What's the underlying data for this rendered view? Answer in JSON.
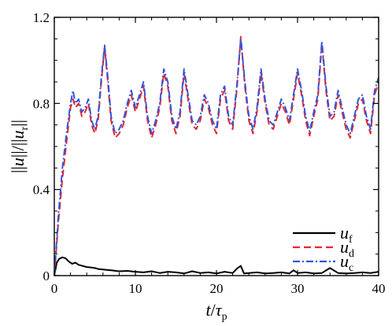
{
  "chart_data": {
    "type": "line",
    "xlabel": "t/τ_p",
    "ylabel": "||u||/||u_r||",
    "xlim": [
      0,
      40
    ],
    "ylim": [
      0,
      1.2
    ],
    "xticks": [
      0,
      10,
      20,
      30,
      40
    ],
    "yticks": [
      0,
      0.4,
      0.8,
      1.2
    ],
    "xtick_labels": [
      "0",
      "10",
      "20",
      "30",
      "40"
    ],
    "ytick_labels": [
      "0",
      "0.4",
      "0.8",
      "1.2"
    ],
    "grid": false,
    "legend_position": "bottom-right",
    "series": [
      {
        "name": "u_f",
        "color": "#000000",
        "style": "solid",
        "x": [
          0,
          0.3,
          0.6,
          1.0,
          1.4,
          1.8,
          2.2,
          2.6,
          3.0,
          3.5,
          4.0,
          4.5,
          5.0,
          5.5,
          6.0,
          7.0,
          8.0,
          9.0,
          10.0,
          11.0,
          12.0,
          13.0,
          14.0,
          15.0,
          16.0,
          17.0,
          18.0,
          19.0,
          20.0,
          21.0,
          22.0,
          22.6,
          23.0,
          23.4,
          24.0,
          25.0,
          26.0,
          27.0,
          28.0,
          29.0,
          29.5,
          30.0,
          31.0,
          32.0,
          33.0,
          34.0,
          35.0,
          36.0,
          37.0,
          38.0,
          39.0,
          40.0
        ],
        "values": [
          0.0,
          0.06,
          0.078,
          0.085,
          0.08,
          0.065,
          0.055,
          0.06,
          0.05,
          0.045,
          0.04,
          0.038,
          0.035,
          0.03,
          0.028,
          0.025,
          0.02,
          0.022,
          0.018,
          0.015,
          0.02,
          0.012,
          0.018,
          0.015,
          0.01,
          0.02,
          0.012,
          0.015,
          0.01,
          0.018,
          0.012,
          0.035,
          0.045,
          0.01,
          0.012,
          0.015,
          0.01,
          0.012,
          0.015,
          0.01,
          0.025,
          0.012,
          0.015,
          0.01,
          0.012,
          0.035,
          0.012,
          0.01,
          0.012,
          0.015,
          0.012,
          0.018
        ]
      },
      {
        "name": "u_d",
        "color": "#e8262b",
        "style": "dashed",
        "x": [
          0,
          0.5,
          1.0,
          1.5,
          2.0,
          2.3,
          2.6,
          3.0,
          3.4,
          3.8,
          4.2,
          4.6,
          5.0,
          5.4,
          5.8,
          6.2,
          6.6,
          7.0,
          7.5,
          8.0,
          8.5,
          9.0,
          9.5,
          10.0,
          10.5,
          11.0,
          11.5,
          12.0,
          12.5,
          13.0,
          13.5,
          14.0,
          14.5,
          15.0,
          15.5,
          16.0,
          16.5,
          17.0,
          17.5,
          18.0,
          18.5,
          19.0,
          19.5,
          20.0,
          20.5,
          21.0,
          21.5,
          22.0,
          22.5,
          23.0,
          23.5,
          24.0,
          24.5,
          25.0,
          25.5,
          26.0,
          26.5,
          27.0,
          27.5,
          28.0,
          28.5,
          29.0,
          29.5,
          30.0,
          30.5,
          31.0,
          31.5,
          32.0,
          32.5,
          33.0,
          33.5,
          34.0,
          34.5,
          35.0,
          35.5,
          36.0,
          36.5,
          37.0,
          37.5,
          38.0,
          38.5,
          39.0,
          39.5,
          40.0
        ],
        "values": [
          0.0,
          0.25,
          0.45,
          0.62,
          0.78,
          0.82,
          0.78,
          0.8,
          0.74,
          0.76,
          0.8,
          0.7,
          0.66,
          0.72,
          0.9,
          1.06,
          0.9,
          0.72,
          0.64,
          0.66,
          0.7,
          0.78,
          0.84,
          0.76,
          0.82,
          0.88,
          0.72,
          0.64,
          0.7,
          0.78,
          0.94,
          0.88,
          0.72,
          0.66,
          0.74,
          0.94,
          0.82,
          0.7,
          0.68,
          0.72,
          0.82,
          0.78,
          0.7,
          0.66,
          0.82,
          0.86,
          0.72,
          0.68,
          0.86,
          1.11,
          0.88,
          0.72,
          0.66,
          0.76,
          0.94,
          0.8,
          0.7,
          0.68,
          0.74,
          0.8,
          0.76,
          0.7,
          0.82,
          0.94,
          0.84,
          0.72,
          0.65,
          0.74,
          0.82,
          1.08,
          0.86,
          0.72,
          0.74,
          0.84,
          0.76,
          0.68,
          0.64,
          0.72,
          0.8,
          0.82,
          0.72,
          0.66,
          0.84,
          0.9
        ]
      },
      {
        "name": "u_c",
        "color": "#3355dd",
        "style": "dashdot",
        "x": [
          0,
          0.5,
          1.0,
          1.5,
          2.0,
          2.3,
          2.6,
          3.0,
          3.4,
          3.8,
          4.2,
          4.6,
          5.0,
          5.4,
          5.8,
          6.2,
          6.6,
          7.0,
          7.5,
          8.0,
          8.5,
          9.0,
          9.5,
          10.0,
          10.5,
          11.0,
          11.5,
          12.0,
          12.5,
          13.0,
          13.5,
          14.0,
          14.5,
          15.0,
          15.5,
          16.0,
          16.5,
          17.0,
          17.5,
          18.0,
          18.5,
          19.0,
          19.5,
          20.0,
          20.5,
          21.0,
          21.5,
          22.0,
          22.5,
          23.0,
          23.5,
          24.0,
          24.5,
          25.0,
          25.5,
          26.0,
          26.5,
          27.0,
          27.5,
          28.0,
          28.5,
          29.0,
          29.5,
          30.0,
          30.5,
          31.0,
          31.5,
          32.0,
          32.5,
          33.0,
          33.5,
          34.0,
          34.5,
          35.0,
          35.5,
          36.0,
          36.5,
          37.0,
          37.5,
          38.0,
          38.5,
          39.0,
          39.5,
          40.0
        ],
        "values": [
          0.0,
          0.28,
          0.5,
          0.66,
          0.8,
          0.86,
          0.8,
          0.82,
          0.76,
          0.78,
          0.82,
          0.72,
          0.68,
          0.74,
          0.92,
          1.07,
          0.92,
          0.74,
          0.66,
          0.68,
          0.72,
          0.8,
          0.86,
          0.78,
          0.84,
          0.9,
          0.74,
          0.66,
          0.72,
          0.8,
          0.96,
          0.9,
          0.74,
          0.68,
          0.76,
          0.96,
          0.84,
          0.72,
          0.7,
          0.74,
          0.84,
          0.8,
          0.72,
          0.68,
          0.84,
          0.88,
          0.74,
          0.7,
          0.88,
          1.1,
          0.9,
          0.74,
          0.68,
          0.78,
          0.96,
          0.82,
          0.72,
          0.7,
          0.76,
          0.82,
          0.78,
          0.72,
          0.84,
          0.96,
          0.86,
          0.74,
          0.67,
          0.76,
          0.84,
          1.09,
          0.88,
          0.74,
          0.76,
          0.86,
          0.78,
          0.7,
          0.66,
          0.74,
          0.82,
          0.84,
          0.74,
          0.68,
          0.86,
          0.92
        ]
      }
    ]
  },
  "legend": {
    "items": [
      {
        "symbol": "u",
        "subscript": "f"
      },
      {
        "symbol": "u",
        "subscript": "d"
      },
      {
        "symbol": "u",
        "subscript": "c"
      }
    ]
  },
  "axes": {
    "x_label": {
      "main": "t",
      "slash": "/",
      "tau": "τ",
      "sub": "p"
    },
    "y_label": {
      "bar1": "||",
      "u1": "u",
      "bar2": "||/||",
      "u2": "u",
      "sub": "r",
      "bar3": "||"
    }
  }
}
